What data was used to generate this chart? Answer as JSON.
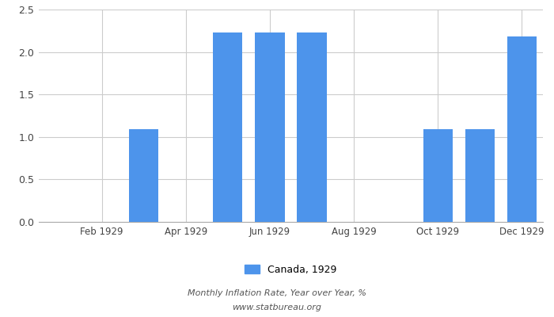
{
  "month_nums": [
    1,
    2,
    3,
    4,
    5,
    6,
    7,
    8,
    9,
    10,
    11,
    12
  ],
  "values": [
    0,
    0,
    1.09,
    0,
    2.23,
    2.23,
    2.23,
    0,
    0,
    1.09,
    1.09,
    2.18
  ],
  "bar_color": "#4d94eb",
  "ylim": [
    0,
    2.5
  ],
  "yticks": [
    0,
    0.5,
    1.0,
    1.5,
    2.0,
    2.5
  ],
  "xtick_positions": [
    2,
    4,
    6,
    8,
    10,
    12
  ],
  "xtick_labels": [
    "Feb 1929",
    "Apr 1929",
    "Jun 1929",
    "Aug 1929",
    "Oct 1929",
    "Dec 1929"
  ],
  "legend_label": "Canada, 1929",
  "subtitle1": "Monthly Inflation Rate, Year over Year, %",
  "subtitle2": "www.statbureau.org",
  "background_color": "#ffffff",
  "grid_color": "#cccccc",
  "title_color": "#555555",
  "bar_width": 0.7
}
